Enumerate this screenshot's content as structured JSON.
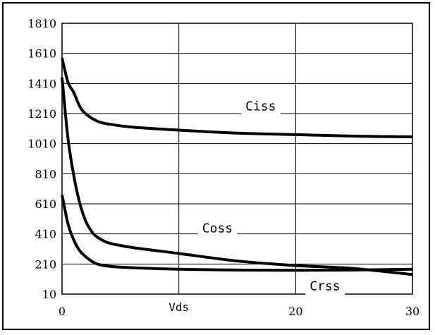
{
  "chart_data": {
    "type": "line",
    "title": "",
    "xlabel": "Vds",
    "ylabel": "",
    "xlim": [
      0,
      30
    ],
    "ylim": [
      10,
      1810
    ],
    "x_ticks": [
      "0",
      "20",
      "30"
    ],
    "x_tick_values": [
      0,
      20,
      30
    ],
    "y_ticks": [
      "1810",
      "1610",
      "1410",
      "1210",
      "1010",
      "810",
      "610",
      "410",
      "210",
      "10"
    ],
    "y_tick_values": [
      1810,
      1610,
      1410,
      1210,
      1010,
      810,
      610,
      410,
      210,
      10
    ],
    "grid": true,
    "series": [
      {
        "name": "Ciss",
        "x": [
          0,
          0.5,
          1,
          1.5,
          2,
          3,
          4,
          6,
          10,
          15,
          20,
          25,
          30
        ],
        "y": [
          1580,
          1420,
          1350,
          1260,
          1210,
          1160,
          1140,
          1120,
          1100,
          1080,
          1070,
          1060,
          1055
        ]
      },
      {
        "name": "Coss",
        "x": [
          0,
          0.5,
          1,
          1.5,
          2,
          2.5,
          3,
          4,
          6,
          10,
          15,
          20,
          25,
          30
        ],
        "y": [
          1450,
          1050,
          800,
          620,
          500,
          430,
          390,
          350,
          320,
          280,
          230,
          200,
          180,
          140
        ]
      },
      {
        "name": "Crss",
        "x": [
          0,
          0.5,
          1,
          1.5,
          2,
          2.5,
          3,
          4,
          6,
          10,
          15,
          20,
          25,
          30
        ],
        "y": [
          670,
          480,
          370,
          300,
          260,
          230,
          210,
          195,
          185,
          175,
          170,
          168,
          170,
          175
        ]
      }
    ],
    "labels": [
      {
        "series": "Ciss",
        "text": "Ciss",
        "x": 15.7,
        "y": 1230
      },
      {
        "series": "Coss",
        "text": "Coss",
        "x": 12,
        "y": 420
      },
      {
        "series": "Crss",
        "text": "Crss",
        "x": 21.2,
        "y": 35
      }
    ]
  }
}
